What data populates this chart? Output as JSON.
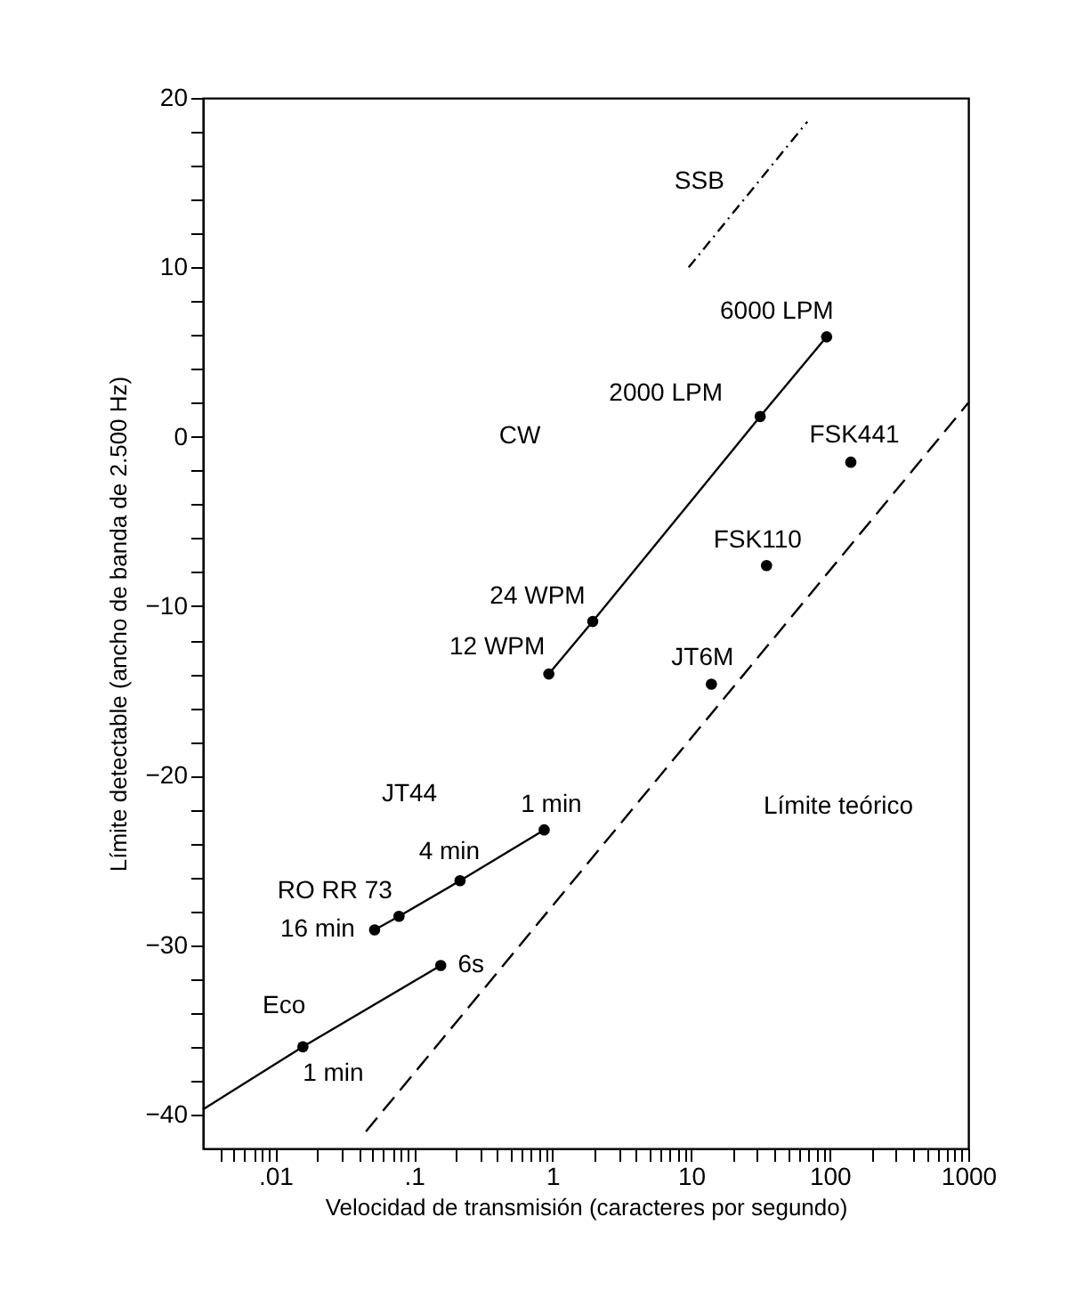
{
  "chart_data": {
    "type": "line",
    "xlabel": "Velocidad de transmisión (caracteres por segundo)",
    "ylabel": "Límite detectable (ancho de banda de 2.500 Hz)",
    "log": "x",
    "grid": false,
    "xlim": [
      0.003,
      1000
    ],
    "xticks": [
      {
        "value": 0.004,
        "label": null
      },
      {
        "value": 0.005,
        "label": null
      },
      {
        "value": 0.006,
        "label": null
      },
      {
        "value": 0.007,
        "label": null
      },
      {
        "value": 0.008,
        "label": null
      },
      {
        "value": 0.009,
        "label": null
      },
      {
        "value": 0.01,
        "label": ".01"
      },
      {
        "value": 0.02,
        "label": null
      },
      {
        "value": 0.03,
        "label": null
      },
      {
        "value": 0.04,
        "label": null
      },
      {
        "value": 0.05,
        "label": null
      },
      {
        "value": 0.06,
        "label": null
      },
      {
        "value": 0.07,
        "label": null
      },
      {
        "value": 0.08,
        "label": null
      },
      {
        "value": 0.09,
        "label": null
      },
      {
        "value": 0.1,
        "label": ".1"
      },
      {
        "value": 0.2,
        "label": null
      },
      {
        "value": 0.3,
        "label": null
      },
      {
        "value": 0.4,
        "label": null
      },
      {
        "value": 0.5,
        "label": null
      },
      {
        "value": 0.6,
        "label": null
      },
      {
        "value": 0.7,
        "label": null
      },
      {
        "value": 0.8,
        "label": null
      },
      {
        "value": 0.9,
        "label": null
      },
      1,
      {
        "value": 2,
        "label": null
      },
      {
        "value": 3,
        "label": null
      },
      {
        "value": 4,
        "label": null
      },
      {
        "value": 5,
        "label": null
      },
      {
        "value": 6,
        "label": null
      },
      {
        "value": 7,
        "label": null
      },
      {
        "value": 8,
        "label": null
      },
      {
        "value": 9,
        "label": null
      },
      10,
      {
        "value": 20,
        "label": null
      },
      {
        "value": 30,
        "label": null
      },
      {
        "value": 40,
        "label": null
      },
      {
        "value": 50,
        "label": null
      },
      {
        "value": 60,
        "label": null
      },
      {
        "value": 70,
        "label": null
      },
      {
        "value": 80,
        "label": null
      },
      {
        "value": 90,
        "label": null
      },
      100,
      {
        "value": 200,
        "label": null
      },
      {
        "value": 300,
        "label": null
      },
      {
        "value": 400,
        "label": null
      },
      {
        "value": 500,
        "label": null
      },
      {
        "value": 600,
        "label": null
      },
      {
        "value": 700,
        "label": null
      },
      {
        "value": 800,
        "label": null
      },
      {
        "value": 900,
        "label": null
      },
      1000
    ],
    "ylim": [
      -42,
      20
    ],
    "yticks": [
      -40,
      {
        "value": -38,
        "label": null
      },
      {
        "value": -36,
        "label": null
      },
      {
        "value": -34,
        "label": null
      },
      {
        "value": -32,
        "label": null
      },
      -30,
      {
        "value": -28,
        "label": null
      },
      {
        "value": -26,
        "label": null
      },
      {
        "value": -24,
        "label": null
      },
      {
        "value": -22,
        "label": null
      },
      -20,
      {
        "value": -18,
        "label": null
      },
      {
        "value": -16,
        "label": null
      },
      {
        "value": -14,
        "label": null
      },
      {
        "value": -12,
        "label": null
      },
      -10,
      {
        "value": -8,
        "label": null
      },
      {
        "value": -6,
        "label": null
      },
      {
        "value": -4,
        "label": null
      },
      {
        "value": -2,
        "label": null
      },
      0,
      {
        "value": 2,
        "label": null
      },
      {
        "value": 4,
        "label": null
      },
      {
        "value": 6,
        "label": null
      },
      {
        "value": 8,
        "label": null
      },
      10,
      {
        "value": 12,
        "label": null
      },
      {
        "value": 14,
        "label": null
      },
      {
        "value": 16,
        "label": null
      },
      {
        "value": 18,
        "label": null
      },
      20
    ],
    "series": [
      {
        "color": "#000000",
        "marker": "circle",
        "line_style": "solid",
        "x": [
          0.94,
          1.95,
          31.5,
          95
        ],
        "values": [
          -14.0,
          -10.9,
          1.2,
          5.9
        ]
      },
      {
        "name": "FSK441",
        "type": "scatter",
        "color": "#000000",
        "marker": "circle",
        "x": [
          142
        ],
        "values": [
          -1.5
        ]
      },
      {
        "name": "FSK110",
        "type": "scatter",
        "color": "#000000",
        "marker": "circle",
        "x": [
          35
        ],
        "values": [
          -7.6
        ]
      },
      {
        "name": "JT6M",
        "type": "scatter",
        "color": "#000000",
        "marker": "circle",
        "x": [
          14
        ],
        "values": [
          -14.6
        ]
      },
      {
        "color": "#000000",
        "marker": "circle",
        "line_style": "solid",
        "x": [
          0.052,
          0.078,
          0.215,
          0.87
        ],
        "values": [
          -29.1,
          -28.3,
          -26.2,
          -23.2
        ]
      },
      {
        "name": "Eco",
        "color": "#000000",
        "marker": "none",
        "line_style": "solid",
        "x": [
          0.003,
          0.0158,
          0.156
        ],
        "values": [
          -39.7,
          -36.0,
          -31.2
        ]
      },
      {
        "type": "scatter",
        "color": "#000000",
        "marker": "circle",
        "x": [
          0.0158,
          0.156
        ],
        "values": [
          -36.0,
          -31.2
        ]
      },
      {
        "color": "#000000",
        "marker": "none",
        "line_style": "dashed",
        "x": [
          0.045,
          1000
        ],
        "values": [
          -41.0,
          2.0
        ]
      },
      {
        "name": "SSB",
        "color": "#000000",
        "marker": "none",
        "line_style": "dotted",
        "x": [
          9.6,
          69
        ],
        "values": [
          10.0,
          18.6
        ]
      }
    ],
    "annotations": [
      {
        "text": "6000 LPM",
        "x": 95,
        "y": 5.9
      },
      {
        "text": "2000 LPM",
        "x": 31.5,
        "y": 1.2
      },
      {
        "text": "24 WPM",
        "x": 1.95,
        "y": -10.9
      },
      {
        "text": "12 WPM",
        "x": 0.94,
        "y": -14.0
      },
      {
        "text": "1 min",
        "x": 0.87,
        "y": -23.2
      },
      {
        "text": "4 min",
        "x": 0.215,
        "y": -26.2
      },
      {
        "text": "RO RR 73",
        "x": 0.078,
        "y": -28.3
      },
      {
        "text": "16 min",
        "x": 0.052,
        "y": -29.1
      },
      {
        "text": "6s",
        "x": 0.156,
        "y": -31.2
      },
      {
        "text": "1 min",
        "x": 0.0158,
        "y": -36.0
      },
      "CW",
      "JT44",
      "Límite teórico"
    ]
  }
}
